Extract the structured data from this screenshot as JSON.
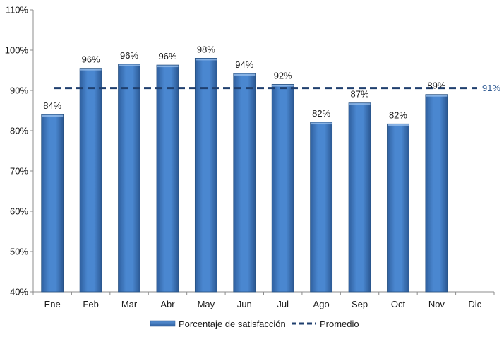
{
  "chart_data": {
    "type": "bar",
    "title": "",
    "xlabel": "",
    "ylabel": "",
    "categories": [
      "Ene",
      "Feb",
      "Mar",
      "Abr",
      "May",
      "Jun",
      "Jul",
      "Ago",
      "Sep",
      "Oct",
      "Nov",
      "Dic"
    ],
    "series": [
      {
        "name": "Porcentaje de satisfacción",
        "values": [
          84,
          95.5,
          96.5,
          96.3,
          98,
          94.2,
          91.5,
          82.1,
          86.9,
          81.7,
          89,
          null
        ],
        "labels": [
          "84%",
          "96%",
          "96%",
          "96%",
          "98%",
          "94%",
          "92%",
          "82%",
          "87%",
          "82%",
          "89%",
          ""
        ],
        "color": "#3F7BC8"
      }
    ],
    "average": {
      "name": "Promedio",
      "value": 90.6,
      "label": "91%",
      "color": "#1F3F6E"
    },
    "yticks": [
      "40%",
      "50%",
      "60%",
      "70%",
      "80%",
      "90%",
      "100%",
      "110%"
    ],
    "ylim": [
      40,
      110
    ],
    "grid": false,
    "legend_position": "bottom"
  }
}
